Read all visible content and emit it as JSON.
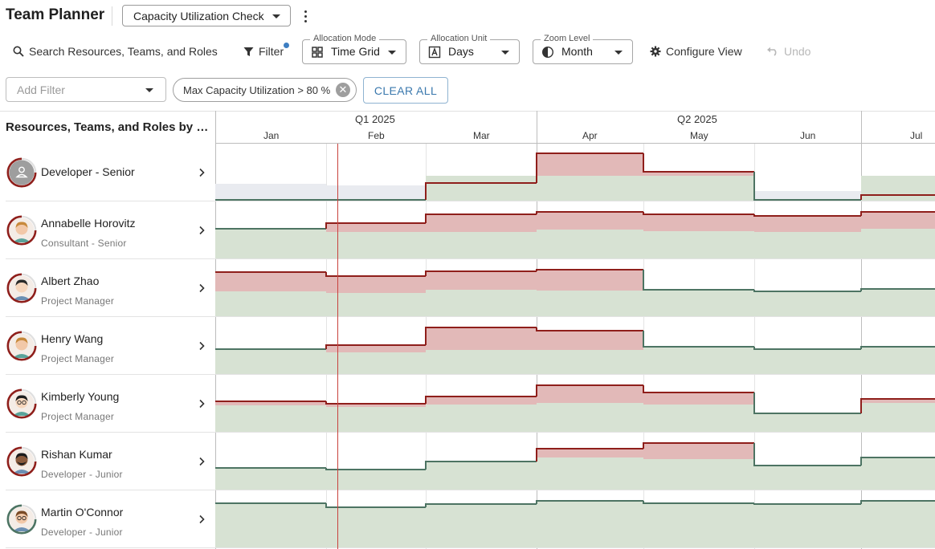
{
  "header": {
    "app_title": "Team Planner",
    "view_select_value": "Capacity Utilization Check"
  },
  "toolbar": {
    "search_label": "Search Resources, Teams, and Roles",
    "filter_label": "Filter",
    "allocation_mode": {
      "label": "Allocation Mode",
      "value": "Time Grid"
    },
    "allocation_unit": {
      "label": "Allocation Unit",
      "value": "Days"
    },
    "zoom_level": {
      "label": "Zoom Level",
      "value": "Month"
    },
    "configure_label": "Configure View",
    "undo_label": "Undo"
  },
  "filters": {
    "add_placeholder": "Add Filter",
    "chips": [
      "Max Capacity Utilization > 80 %"
    ],
    "clear_all_label": "CLEAR ALL"
  },
  "grid": {
    "column_header": "Resources, Teams, and Roles by Utilization",
    "quarters": [
      "Q1 2025",
      "Q2 2025"
    ],
    "months": [
      "Jan",
      "Feb",
      "Mar",
      "Apr",
      "May",
      "Jun",
      "Jul"
    ]
  },
  "colors": {
    "over_fill": "#e2b9b8",
    "over_line": "#8f1f1b",
    "under_fill": "#d7e2d3",
    "under_line": "#4d7463",
    "unassigned_fill": "#e9ebf0",
    "today_line": "#c8423d",
    "accent": "#3a78ad"
  },
  "resources": [
    {
      "name": "Developer - Senior",
      "role": "",
      "avatar": "generic-role-icon",
      "ring": "#8f1f1b"
    },
    {
      "name": "Annabelle Horovitz",
      "role": "Consultant - Senior",
      "avatar": "woman-avatar",
      "ring": "#8f1f1b"
    },
    {
      "name": "Albert Zhao",
      "role": "Project Manager",
      "avatar": "man-avatar",
      "ring": "#8f1f1b"
    },
    {
      "name": "Henry Wang",
      "role": "Project Manager",
      "avatar": "woman-avatar",
      "ring": "#8f1f1b"
    },
    {
      "name": "Kimberly Young",
      "role": "Project Manager",
      "avatar": "woman-glasses-avatar",
      "ring": "#8f1f1b"
    },
    {
      "name": "Rishan Kumar",
      "role": "Developer - Junior",
      "avatar": "man-beard-avatar",
      "ring": "#8f1f1b"
    },
    {
      "name": "Martin O'Connor",
      "role": "Developer - Junior",
      "avatar": "man-glasses-avatar",
      "ring": "#4d7463"
    }
  ]
}
